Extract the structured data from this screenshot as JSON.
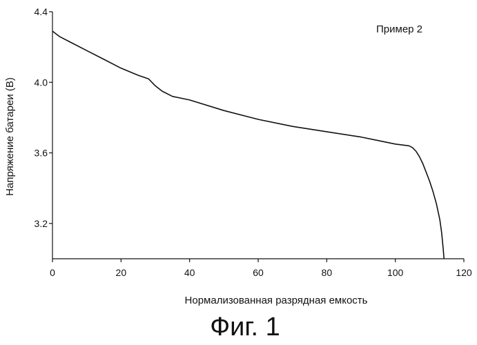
{
  "figure_caption": "Фиг. 1",
  "chart_data": {
    "type": "line",
    "annotation": "Пример 2",
    "xlabel": "Нормализованная разрядная емкость",
    "ylabel": "Напряжение батареи (В)",
    "xlim": [
      0,
      120
    ],
    "ylim": [
      3.0,
      4.4
    ],
    "x_ticks": [
      0,
      20,
      40,
      60,
      80,
      100,
      120
    ],
    "x_tick_labels": [
      "0",
      "20",
      "40",
      "60",
      "80",
      "100",
      "120"
    ],
    "y_ticks": [
      3.2,
      3.6,
      4.0,
      4.4
    ],
    "y_tick_labels": [
      "3.2",
      "3.6",
      "4.0",
      "4.4"
    ],
    "grid": false,
    "series": [
      {
        "x": [
          0,
          2,
          5,
          10,
          15,
          20,
          25,
          28,
          30,
          32,
          35,
          40,
          50,
          60,
          70,
          80,
          90,
          95,
          100,
          102,
          104,
          105,
          106,
          107,
          108,
          109,
          110,
          111,
          112,
          113,
          113.5,
          114,
          114.2
        ],
        "y": [
          4.29,
          4.26,
          4.23,
          4.18,
          4.13,
          4.08,
          4.04,
          4.02,
          3.98,
          3.95,
          3.92,
          3.9,
          3.84,
          3.79,
          3.75,
          3.72,
          3.69,
          3.67,
          3.65,
          3.645,
          3.64,
          3.63,
          3.61,
          3.58,
          3.54,
          3.49,
          3.44,
          3.38,
          3.31,
          3.22,
          3.15,
          3.05,
          3.0
        ]
      }
    ]
  }
}
